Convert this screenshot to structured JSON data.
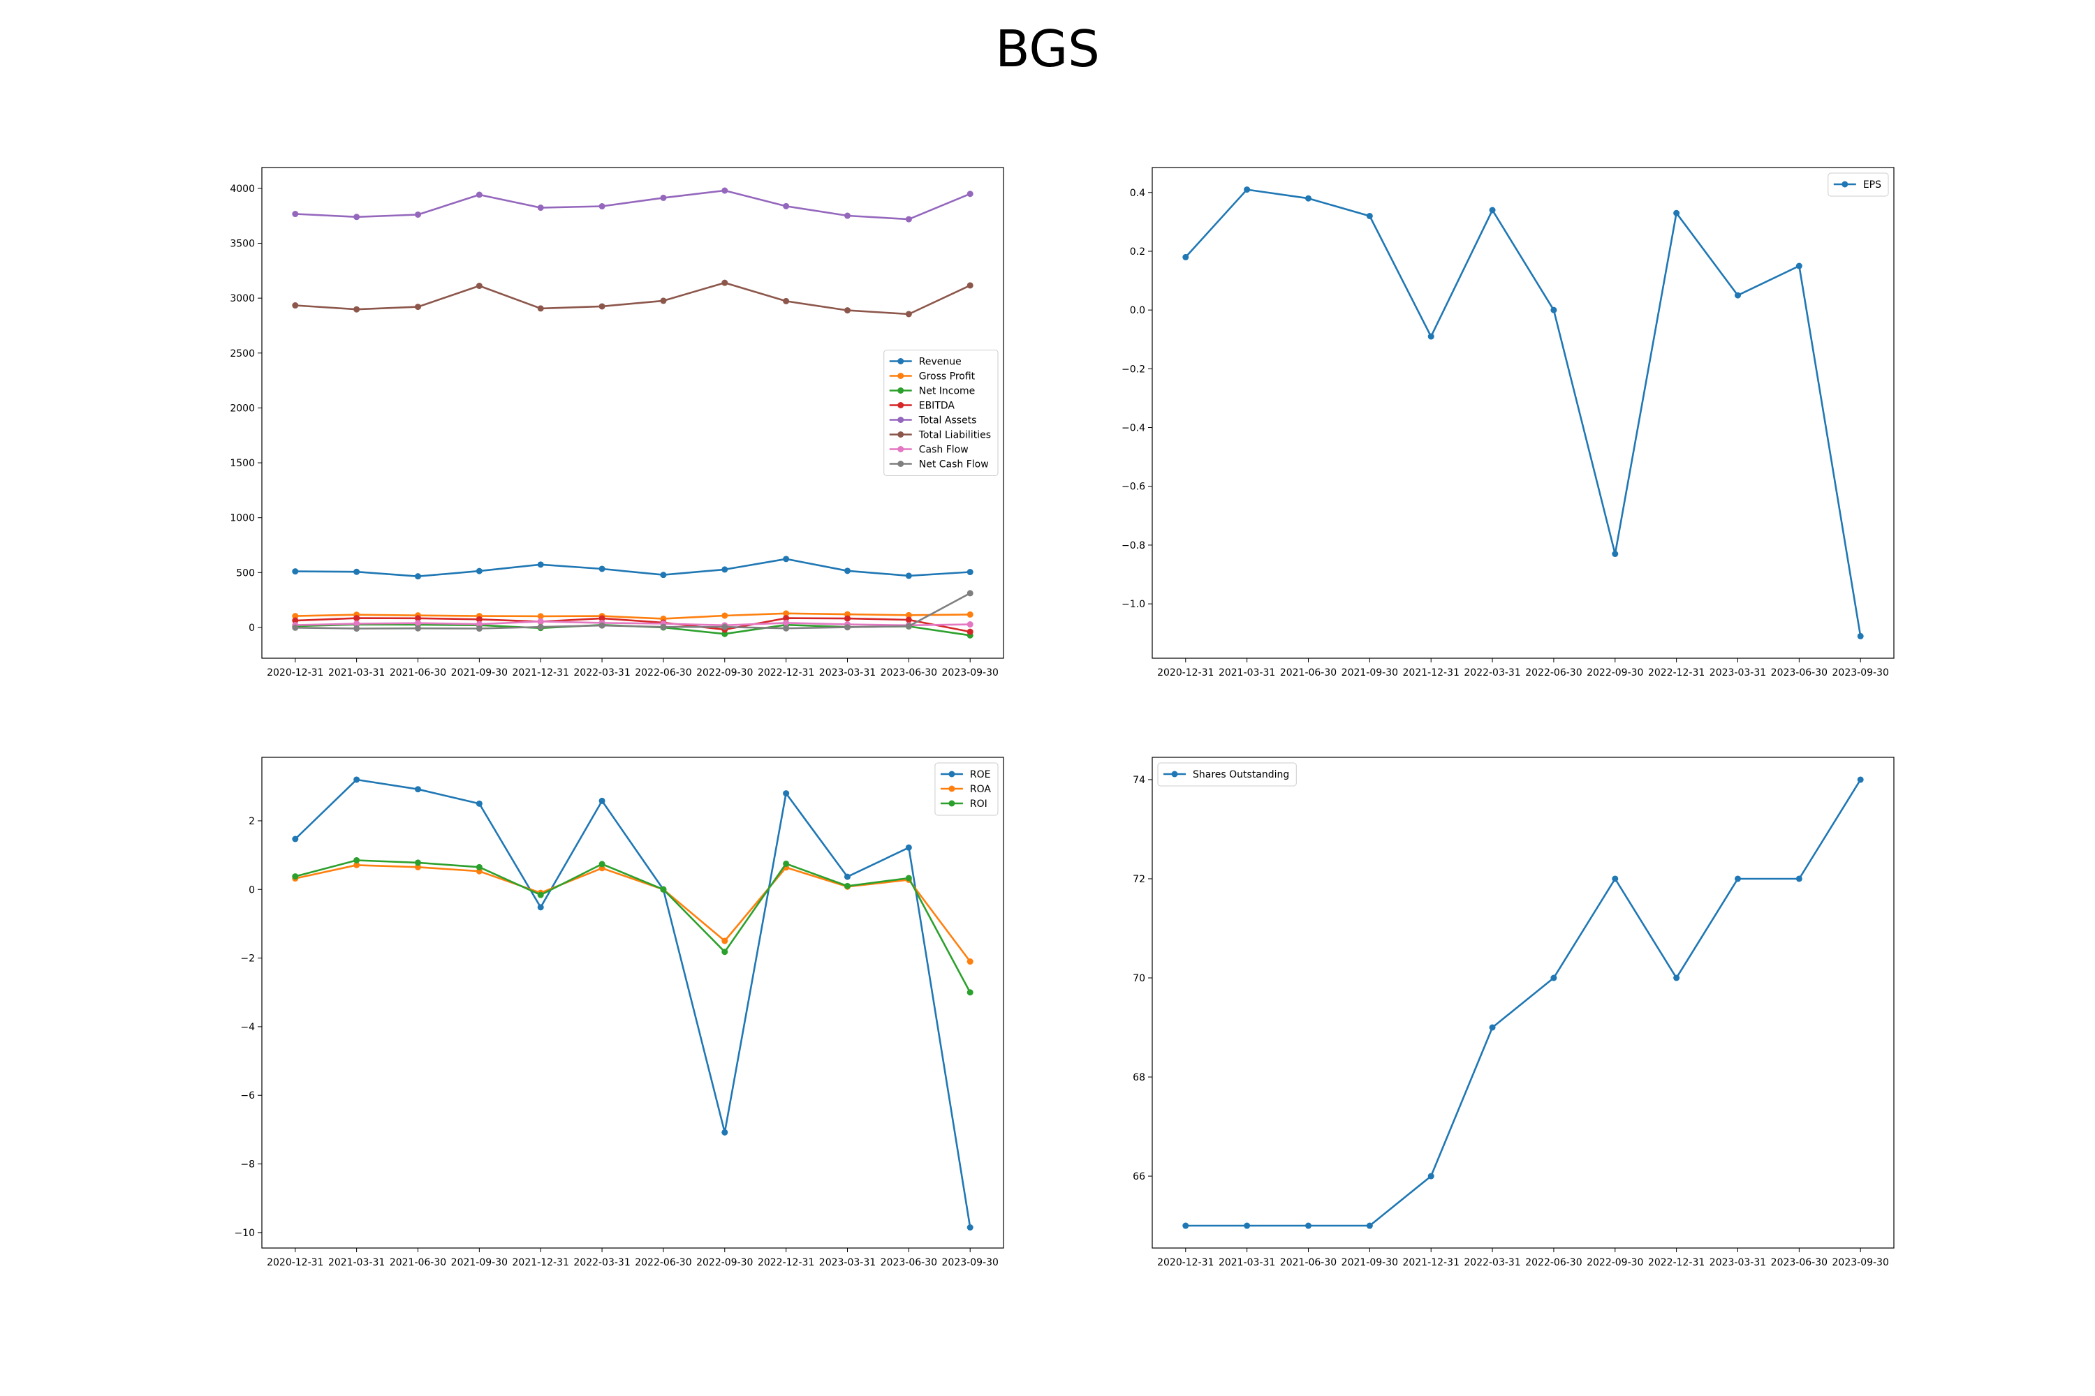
{
  "figure": {
    "title": "BGS"
  },
  "colors": {
    "blue": "#1f77b4",
    "orange": "#ff7f0e",
    "green": "#2ca02c",
    "red": "#d62728",
    "purple": "#9467bd",
    "brown": "#8c564b",
    "pink": "#e377c2",
    "gray": "#7f7f7f"
  },
  "chart_data": [
    {
      "id": "financials",
      "type": "line",
      "categories": [
        "2020-12-31",
        "2021-03-31",
        "2021-06-30",
        "2021-09-30",
        "2021-12-31",
        "2022-03-31",
        "2022-06-30",
        "2022-09-30",
        "2022-12-31",
        "2023-03-31",
        "2023-06-30",
        "2023-09-30"
      ],
      "ylim": [
        -280,
        4190
      ],
      "yticks": [
        0,
        500,
        1000,
        1500,
        2000,
        2500,
        3000,
        3500,
        4000
      ],
      "legend": "center-right",
      "grid": false,
      "series": [
        {
          "name": "Revenue",
          "color": "#1f77b4",
          "values": [
            511,
            507,
            466,
            514,
            573,
            534,
            479,
            528,
            624,
            516,
            471,
            505
          ]
        },
        {
          "name": "Gross Profit",
          "color": "#ff7f0e",
          "values": [
            104,
            116,
            110,
            104,
            102,
            104,
            80,
            108,
            128,
            120,
            112,
            118
          ]
        },
        {
          "name": "Net Income",
          "color": "#2ca02c",
          "values": [
            12,
            27,
            25,
            21,
            -5,
            23,
            0,
            -59,
            24,
            4,
            10,
            -72
          ]
        },
        {
          "name": "EBITDA",
          "color": "#d62728",
          "values": [
            63,
            85,
            84,
            74,
            53,
            83,
            44,
            -19,
            85,
            82,
            70,
            -39
          ]
        },
        {
          "name": "Total Assets",
          "color": "#9467bd",
          "values": [
            3767,
            3740,
            3761,
            3942,
            3824,
            3837,
            3914,
            3980,
            3838,
            3751,
            3719,
            3950
          ]
        },
        {
          "name": "Total Liabilities",
          "color": "#8c564b",
          "values": [
            2934,
            2898,
            2921,
            3112,
            2906,
            2925,
            2976,
            3140,
            2973,
            2889,
            2855,
            3116
          ]
        },
        {
          "name": "Cash Flow",
          "color": "#e377c2",
          "values": [
            22,
            35,
            40,
            30,
            55,
            42,
            35,
            20,
            42,
            28,
            20,
            28
          ]
        },
        {
          "name": "Net Cash Flow",
          "color": "#7f7f7f",
          "values": [
            -2,
            -10,
            -8,
            -10,
            5,
            18,
            5,
            5,
            -8,
            2,
            12,
            312
          ]
        }
      ]
    },
    {
      "id": "eps",
      "type": "line",
      "categories": [
        "2020-12-31",
        "2021-03-31",
        "2021-06-30",
        "2021-09-30",
        "2021-12-31",
        "2022-03-31",
        "2022-06-30",
        "2022-09-30",
        "2022-12-31",
        "2023-03-31",
        "2023-06-30",
        "2023-09-30"
      ],
      "ylim": [
        -1.185,
        0.485
      ],
      "yticks": [
        -1.0,
        -0.8,
        -0.6,
        -0.4,
        -0.2,
        0.0,
        0.2,
        0.4
      ],
      "ytick_labels": [
        "−1.0",
        "−0.8",
        "−0.6",
        "−0.4",
        "−0.2",
        "0.0",
        "0.2",
        "0.4"
      ],
      "legend": "upper-right",
      "grid": false,
      "series": [
        {
          "name": "EPS",
          "color": "#1f77b4",
          "values": [
            0.18,
            0.41,
            0.38,
            0.32,
            -0.09,
            0.34,
            0.0,
            -0.83,
            0.33,
            0.05,
            0.15,
            -1.11
          ]
        }
      ]
    },
    {
      "id": "ratios",
      "type": "line",
      "categories": [
        "2020-12-31",
        "2021-03-31",
        "2021-06-30",
        "2021-09-30",
        "2021-12-31",
        "2022-03-31",
        "2022-06-30",
        "2022-09-30",
        "2022-12-31",
        "2023-03-31",
        "2023-06-30",
        "2023-09-30"
      ],
      "ylim": [
        -10.45,
        3.85
      ],
      "yticks": [
        -10,
        -8,
        -6,
        -4,
        -2,
        0,
        2
      ],
      "ytick_labels": [
        "−10",
        "−8",
        "−6",
        "−4",
        "−2",
        "0",
        "2"
      ],
      "legend": "upper-right",
      "grid": false,
      "series": [
        {
          "name": "ROE",
          "color": "#1f77b4",
          "values": [
            1.47,
            3.2,
            2.92,
            2.5,
            -0.52,
            2.58,
            0.0,
            -7.08,
            2.8,
            0.37,
            1.22,
            -9.85
          ]
        },
        {
          "name": "ROA",
          "color": "#ff7f0e",
          "values": [
            0.32,
            0.71,
            0.65,
            0.53,
            -0.1,
            0.62,
            0.0,
            -1.5,
            0.64,
            0.08,
            0.28,
            -2.1
          ]
        },
        {
          "name": "ROI",
          "color": "#2ca02c",
          "values": [
            0.38,
            0.85,
            0.78,
            0.65,
            -0.16,
            0.74,
            0.0,
            -1.82,
            0.75,
            0.1,
            0.33,
            -3.0
          ]
        }
      ]
    },
    {
      "id": "shares",
      "type": "line",
      "categories": [
        "2020-12-31",
        "2021-03-31",
        "2021-06-30",
        "2021-09-30",
        "2021-12-31",
        "2022-03-31",
        "2022-06-30",
        "2022-09-30",
        "2022-12-31",
        "2023-03-31",
        "2023-06-30",
        "2023-09-30"
      ],
      "ylim": [
        64.55,
        74.45
      ],
      "yticks": [
        66,
        68,
        70,
        72,
        74
      ],
      "legend": "upper-left",
      "grid": false,
      "series": [
        {
          "name": "Shares Outstanding",
          "color": "#1f77b4",
          "values": [
            65,
            65,
            65,
            65,
            66,
            69,
            70,
            72,
            70,
            72,
            72,
            74
          ]
        }
      ]
    }
  ]
}
